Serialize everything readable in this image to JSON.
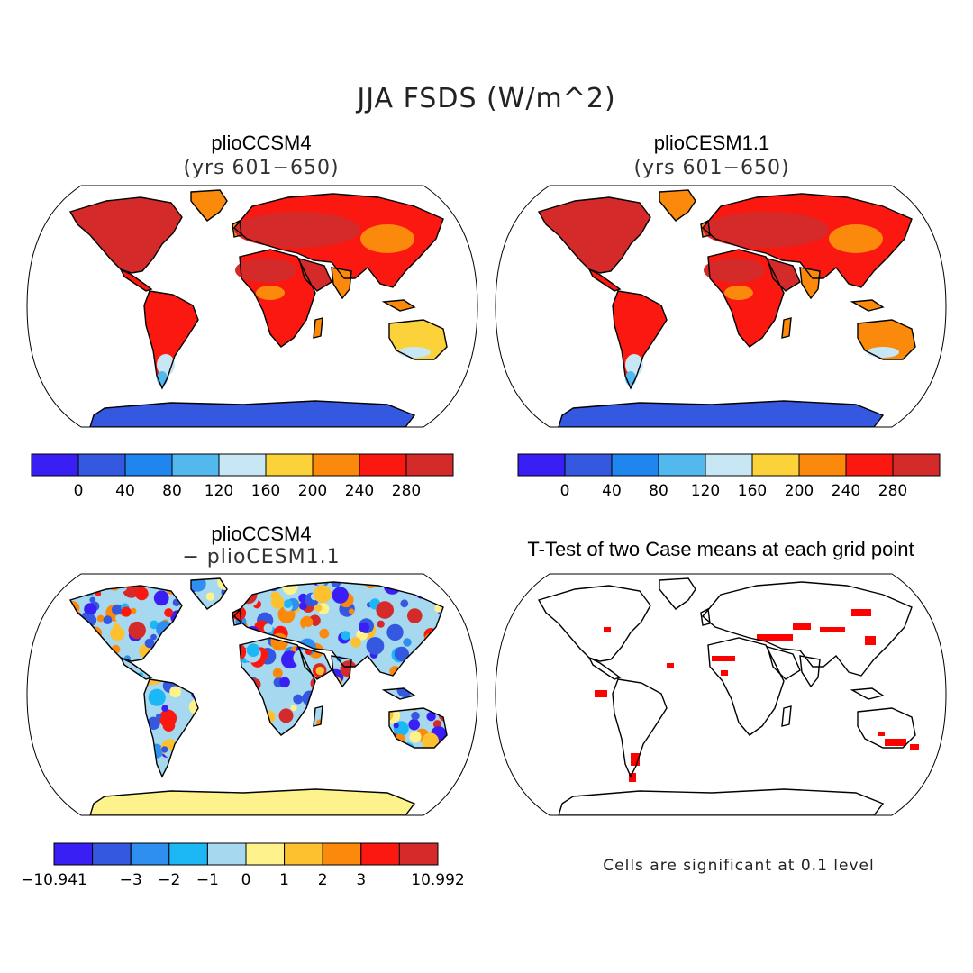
{
  "title": "JJA FSDS (W/m^2)",
  "colors": {
    "land_outline": "#000000",
    "ocean": "#ffffff",
    "significance": "#ff0000"
  },
  "panels": [
    {
      "title": "plioCCSM4",
      "subtitle": "(yrs 601−650)",
      "kind": "absolute",
      "colorbar": {
        "colors": [
          "#3a1ff5",
          "#3558e0",
          "#1f86f0",
          "#52b8ee",
          "#c8e7f5",
          "#fcd23a",
          "#fb8a0c",
          "#fb1810",
          "#d42a2a"
        ],
        "labels": [
          "0",
          "40",
          "80",
          "120",
          "160",
          "200",
          "240",
          "280"
        ]
      }
    },
    {
      "title": "plioCESM1.1",
      "subtitle": "(yrs 601−650)",
      "kind": "absolute",
      "colorbar": {
        "colors": [
          "#3a1ff5",
          "#3558e0",
          "#1f86f0",
          "#52b8ee",
          "#c8e7f5",
          "#fcd23a",
          "#fb8a0c",
          "#fb1810",
          "#d42a2a"
        ],
        "labels": [
          "0",
          "40",
          "80",
          "120",
          "160",
          "200",
          "240",
          "280"
        ]
      }
    },
    {
      "title": "plioCCSM4",
      "subtitle": "− plioCESM1.1",
      "kind": "difference",
      "colorbar": {
        "colors": [
          "#3a1ff5",
          "#3558e0",
          "#2f8ff0",
          "#1bb8f5",
          "#a6d8ef",
          "#fdf28c",
          "#fdc12f",
          "#fb8a0c",
          "#fb1810",
          "#d42a2a"
        ],
        "labels": [
          "−10.941",
          "−3",
          "−2",
          "−1",
          "0",
          "1",
          "2",
          "3",
          "10.992"
        ]
      }
    },
    {
      "title": "T-Test of two Case means at each grid point",
      "kind": "ttest",
      "note": "Cells are significant at 0.1 level"
    }
  ]
}
